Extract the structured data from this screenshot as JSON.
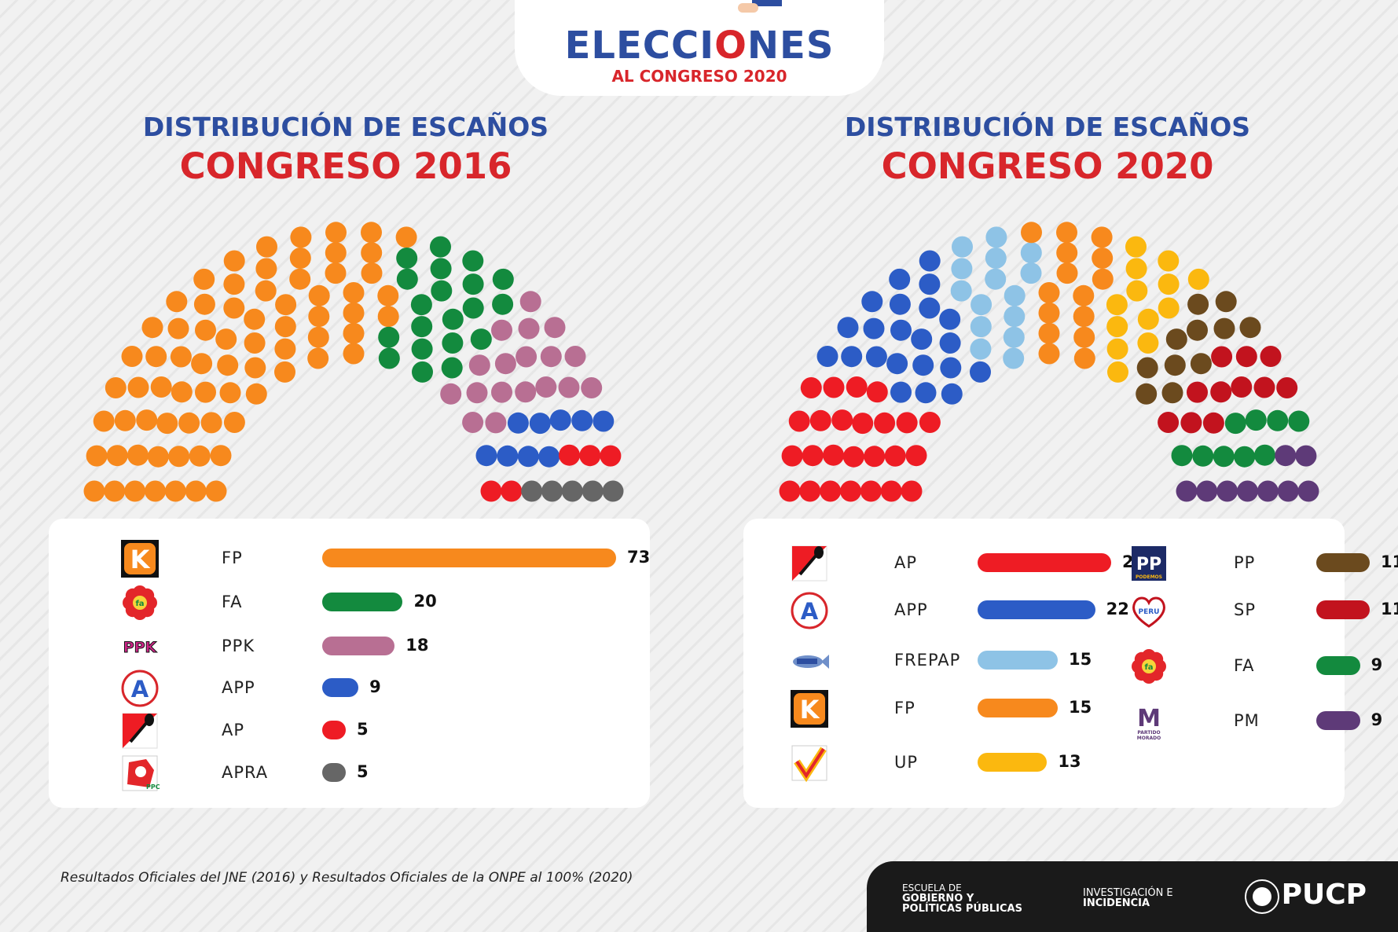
{
  "header": {
    "title_pre": "ELECCI",
    "title_o": "O",
    "title_post": "NES",
    "subtitle": "AL CONGRESO 2020"
  },
  "sections": [
    {
      "line1": "DISTRIBUCIÓN DE ESCAÑOS",
      "line2": "CONGRESO 2016"
    },
    {
      "line1": "DISTRIBUCIÓN DE ESCAÑOS",
      "line2": "CONGRESO 2020"
    }
  ],
  "chart_data": [
    {
      "type": "bar",
      "title": "CONGRESO 2016",
      "categories": [
        "FP",
        "FA",
        "PPK",
        "APP",
        "AP",
        "APRA"
      ],
      "values": [
        73,
        20,
        18,
        9,
        5,
        5
      ],
      "colors": [
        "#f7891d",
        "#138a3e",
        "#b86f93",
        "#2c5cc6",
        "#ee1c24",
        "#666666"
      ],
      "logos": [
        "k-logo-icon",
        "flower-logo-icon",
        "ppk-logo-icon",
        "a-logo-icon",
        "shovel-logo-icon",
        "apra-logo-icon"
      ],
      "total_seats": 130
    },
    {
      "type": "bar",
      "title": "CONGRESO 2020",
      "categories": [
        "AP",
        "APP",
        "FREPAP",
        "FP",
        "UP",
        "PP",
        "SP",
        "FA",
        "PM"
      ],
      "values": [
        25,
        22,
        15,
        15,
        13,
        11,
        11,
        9,
        9
      ],
      "colors": [
        "#ee1c24",
        "#2c5cc6",
        "#8ec3e6",
        "#f7891d",
        "#fbb80f",
        "#6b4a1e",
        "#c2131e",
        "#138a3e",
        "#5e3a78"
      ],
      "logos": [
        "shovel-logo-icon",
        "a-logo-icon",
        "fish-logo-icon",
        "k-logo-icon",
        "check-logo-icon",
        "podemos-logo-icon",
        "somosperu-logo-icon",
        "flower-logo-icon",
        "morado-logo-icon"
      ],
      "logo_text": {
        "PP": "PODEMOS",
        "SP": "SOMOS PERU",
        "PM": "PARTIDO MORADO",
        "PPK": "PPK"
      },
      "total_seats": 130
    }
  ],
  "footnote": "Resultados Oficiales del JNE (2016) y Resultados Oficiales de la ONPE al 100% (2020)",
  "footer": {
    "school_line1": "ESCUELA DE",
    "school_line2": "GOBIERNO Y",
    "school_line3": "POLÍTICAS PÚBLICAS",
    "research_line1": "INVESTIGACIÓN E",
    "research_line2": "INCIDENCIA",
    "brand": "PUCP"
  }
}
